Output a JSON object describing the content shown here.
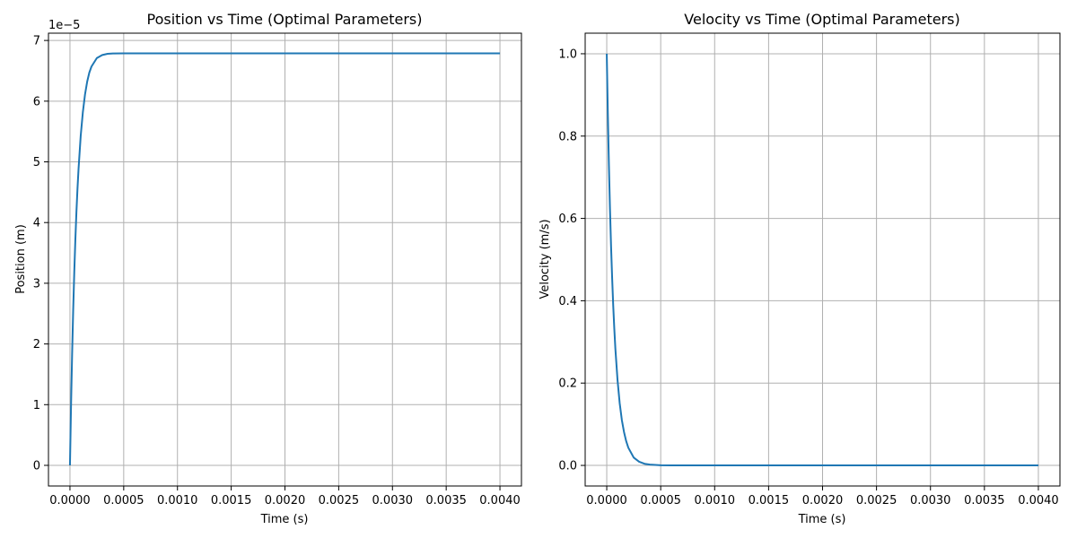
{
  "chart_data": [
    {
      "type": "line",
      "title": "Position vs Time (Optimal Parameters)",
      "xlabel": "Time (s)",
      "ylabel": "Position (m)",
      "y_offset_label": "1e−5",
      "xlim": [
        -0.0002,
        0.0042
      ],
      "ylim": [
        -0.34,
        7.12
      ],
      "xticks": [
        0,
        0.0005,
        0.001,
        0.0015,
        0.002,
        0.0025,
        0.003,
        0.0035,
        0.004
      ],
      "xtick_labels": [
        "0.0000",
        "0.0005",
        "0.0010",
        "0.0015",
        "0.0020",
        "0.0025",
        "0.0030",
        "0.0035",
        "0.0040"
      ],
      "yticks": [
        0,
        1,
        2,
        3,
        4,
        5,
        6,
        7
      ],
      "ytick_labels": [
        "0",
        "1",
        "2",
        "3",
        "4",
        "5",
        "6",
        "7"
      ],
      "grid": true,
      "color": "#1f77b4",
      "series": [
        {
          "x": [
            0,
            1e-05,
            2e-05,
            3e-05,
            4e-05,
            5e-05,
            6e-05,
            7e-05,
            8e-05,
            0.0001,
            0.00012,
            0.00014,
            0.00016,
            0.00018,
            0.0002,
            0.00025,
            0.0003,
            0.00035,
            0.0004,
            0.0005,
            0.0006,
            0.0008,
            0.001,
            0.0015,
            0.002,
            0.0025,
            0.003,
            0.0035,
            0.004
          ],
          "y": [
            0,
            0.99,
            1.83,
            2.56,
            3.18,
            3.71,
            4.17,
            4.56,
            4.89,
            5.43,
            5.82,
            6.11,
            6.32,
            6.47,
            6.57,
            6.71,
            6.76,
            6.78,
            6.785,
            6.787,
            6.787,
            6.787,
            6.787,
            6.787,
            6.787,
            6.787,
            6.787,
            6.787,
            6.787
          ]
        }
      ]
    },
    {
      "type": "line",
      "title": "Velocity vs Time (Optimal Parameters)",
      "xlabel": "Time (s)",
      "ylabel": "Velocity (m/s)",
      "xlim": [
        -0.0002,
        0.0042
      ],
      "ylim": [
        -0.05,
        1.05
      ],
      "xticks": [
        0,
        0.0005,
        0.001,
        0.0015,
        0.002,
        0.0025,
        0.003,
        0.0035,
        0.004
      ],
      "xtick_labels": [
        "0.0000",
        "0.0005",
        "0.0010",
        "0.0015",
        "0.0020",
        "0.0025",
        "0.0030",
        "0.0035",
        "0.0040"
      ],
      "yticks": [
        0,
        0.2,
        0.4,
        0.6,
        0.8,
        1.0
      ],
      "ytick_labels": [
        "0.0",
        "0.2",
        "0.4",
        "0.6",
        "0.8",
        "1.0"
      ],
      "grid": true,
      "color": "#1f77b4",
      "series": [
        {
          "x": [
            0,
            1e-05,
            2e-05,
            3e-05,
            4e-05,
            5e-05,
            6e-05,
            7e-05,
            8e-05,
            0.0001,
            0.00012,
            0.00014,
            0.00016,
            0.00018,
            0.0002,
            0.00025,
            0.0003,
            0.00035,
            0.0004,
            0.0005,
            0.0006,
            0.0008,
            0.001,
            0.0015,
            0.002,
            0.0025,
            0.003,
            0.0035,
            0.004
          ],
          "y": [
            1.0,
            0.854,
            0.73,
            0.623,
            0.532,
            0.455,
            0.388,
            0.332,
            0.283,
            0.207,
            0.151,
            0.11,
            0.081,
            0.059,
            0.043,
            0.019,
            0.009,
            0.004,
            0.002,
            0.0004,
            0.0001,
            0,
            0,
            0,
            0,
            0,
            0,
            0,
            0
          ]
        }
      ]
    }
  ]
}
